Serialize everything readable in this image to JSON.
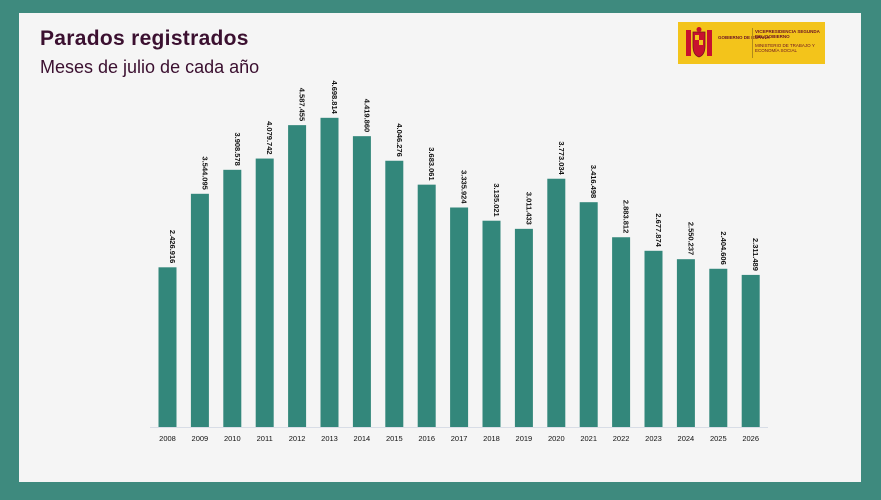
{
  "header": {
    "title": "Parados registrados",
    "subtitle": "Meses de julio de cada año"
  },
  "logo": {
    "left_text": "GOBIERNO DE ESPAÑA",
    "right_top": "VICEPRESIDENCIA SEGUNDA DEL GOBIERNO",
    "right_bottom": "MINISTERIO DE TRABAJO Y ECONOMÍA SOCIAL"
  },
  "colors": {
    "bar": "#33877b",
    "frame": "#3e8a7e",
    "title": "#3b1030"
  },
  "chart_data": {
    "type": "bar",
    "title": "Parados registrados",
    "subtitle": "Meses de julio de cada año",
    "categories": [
      "2008",
      "2009",
      "2010",
      "2011",
      "2012",
      "2013",
      "2014",
      "2015",
      "2016",
      "2017",
      "2018",
      "2019",
      "2020",
      "2021",
      "2022",
      "2023",
      "2024",
      "2025",
      "2026"
    ],
    "values": [
      2426916,
      3544095,
      3908578,
      4079742,
      4587455,
      4698814,
      4419860,
      4046276,
      3683061,
      3335924,
      3135021,
      3011433,
      3773034,
      3416498,
      2883812,
      2677874,
      2550237,
      2404606,
      2311489
    ],
    "value_labels": [
      "2.426.916",
      "3.544.095",
      "3.908.578",
      "4.079.742",
      "4.587.455",
      "4.698.814",
      "4.419.860",
      "4.046.276",
      "3.683.061",
      "3.335.924",
      "3.135.021",
      "3.011.433",
      "3.773.034",
      "3.416.498",
      "2.883.812",
      "2.677.874",
      "2.550.237",
      "2.404.606",
      "2.311.489"
    ],
    "ylim": [
      0,
      5000000
    ],
    "xlabel": "",
    "ylabel": "",
    "grid": false,
    "legend": "none"
  }
}
